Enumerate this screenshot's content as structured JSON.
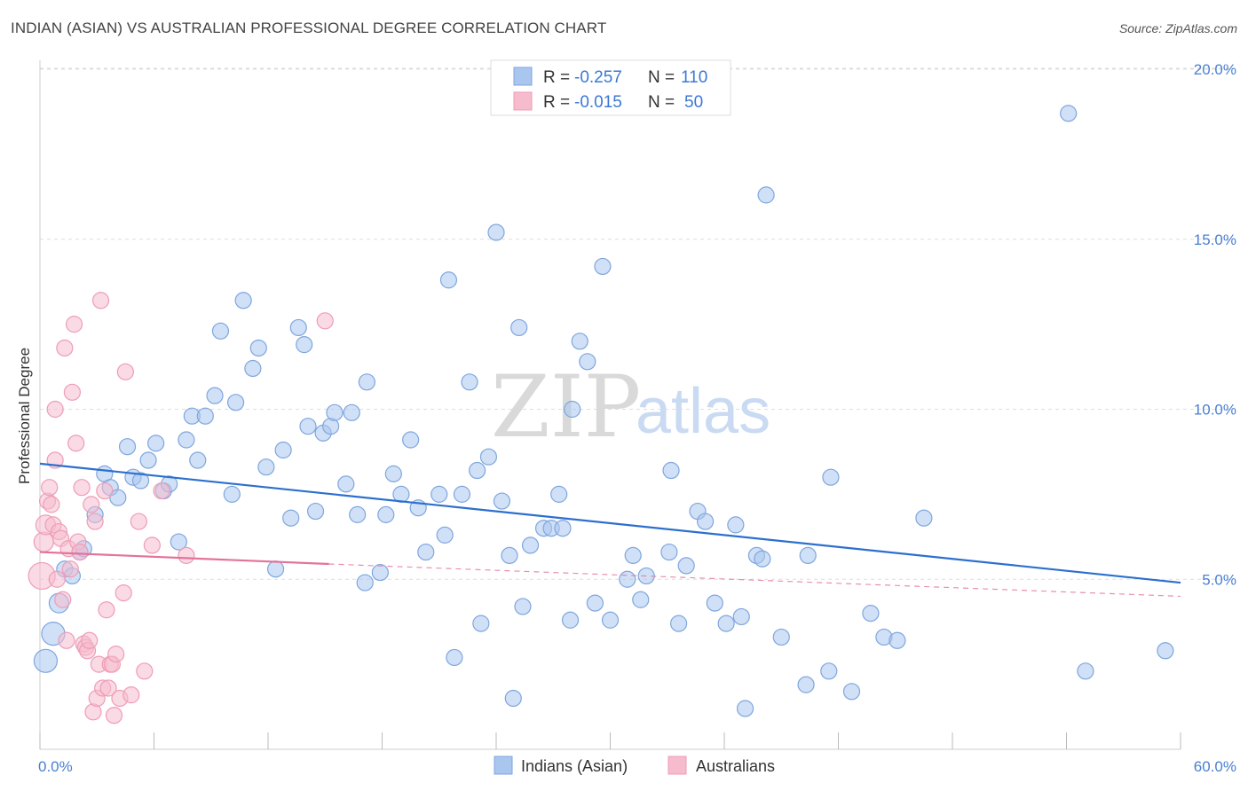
{
  "title": "INDIAN (ASIAN) VS AUSTRALIAN PROFESSIONAL DEGREE CORRELATION CHART",
  "source": "Source: ZipAtlas.com",
  "watermark": {
    "zip": "ZIP",
    "atlas": "atlas"
  },
  "legend": {
    "r_label": "R =",
    "n_label": "N =",
    "rows": [
      {
        "r": "-0.257",
        "n": "110"
      },
      {
        "r": "-0.015",
        "n": "50"
      }
    ]
  },
  "bottom_legend": [
    "Indians (Asian)",
    "Australians"
  ],
  "colors": {
    "blue_fill": "#a9c6ee",
    "blue_stroke": "#7fa6de",
    "blue_line": "#2c6fce",
    "pink_fill": "#f6bccd",
    "pink_stroke": "#ee9db6",
    "pink_line": "#e2739a",
    "tick_text": "#4a7fd1",
    "grid": "#dddddd"
  },
  "chart_data": {
    "type": "scatter",
    "title": "INDIAN (ASIAN) VS AUSTRALIAN PROFESSIONAL DEGREE CORRELATION CHART",
    "xlabel": "",
    "ylabel": "Professional Degree",
    "xlim": [
      0,
      60
    ],
    "ylim": [
      0,
      20.6
    ],
    "x_tick_labels": [
      "0.0%",
      "60.0%"
    ],
    "y_ticks": [
      5,
      10,
      15,
      20
    ],
    "y_tick_labels": [
      "5.0%",
      "10.0%",
      "15.0%",
      "20.0%"
    ],
    "grid": "horizontal dashed",
    "legend_position": "top-center",
    "series": [
      {
        "name": "Indians (Asian)",
        "r": -0.257,
        "n": 110,
        "trend": {
          "x": [
            0,
            60
          ],
          "y": [
            8.4,
            4.9
          ]
        },
        "points": [
          [
            0.3,
            2.6,
            13
          ],
          [
            0.7,
            3.4,
            13
          ],
          [
            1.0,
            4.3,
            11
          ],
          [
            1.3,
            5.3,
            9
          ],
          [
            1.7,
            5.1,
            9
          ],
          [
            2.1,
            5.8,
            9
          ],
          [
            2.3,
            5.9,
            9
          ],
          [
            2.9,
            6.9,
            9
          ],
          [
            3.4,
            8.1,
            9
          ],
          [
            3.7,
            7.7,
            9
          ],
          [
            4.1,
            7.4,
            9
          ],
          [
            4.6,
            8.9,
            9
          ],
          [
            4.9,
            8.0,
            9
          ],
          [
            5.3,
            7.9,
            9
          ],
          [
            5.7,
            8.5,
            9
          ],
          [
            6.1,
            9.0,
            9
          ],
          [
            6.5,
            7.6,
            9
          ],
          [
            6.8,
            7.8,
            9
          ],
          [
            7.3,
            6.1,
            9
          ],
          [
            7.7,
            9.1,
            9
          ],
          [
            8.0,
            9.8,
            9
          ],
          [
            8.3,
            8.5,
            9
          ],
          [
            8.7,
            9.8,
            9
          ],
          [
            9.2,
            10.4,
            9
          ],
          [
            9.5,
            12.3,
            9
          ],
          [
            10.1,
            7.5,
            9
          ],
          [
            10.3,
            10.2,
            9
          ],
          [
            10.7,
            13.2,
            9
          ],
          [
            11.2,
            11.2,
            9
          ],
          [
            11.5,
            11.8,
            9
          ],
          [
            11.9,
            8.3,
            9
          ],
          [
            12.4,
            5.3,
            9
          ],
          [
            12.8,
            8.8,
            9
          ],
          [
            13.2,
            6.8,
            9
          ],
          [
            13.6,
            12.4,
            9
          ],
          [
            13.9,
            11.9,
            9
          ],
          [
            14.1,
            9.5,
            9
          ],
          [
            14.5,
            7.0,
            9
          ],
          [
            14.9,
            9.3,
            9
          ],
          [
            15.3,
            9.5,
            9
          ],
          [
            15.5,
            9.9,
            9
          ],
          [
            16.1,
            7.8,
            9
          ],
          [
            16.4,
            9.9,
            9
          ],
          [
            16.7,
            6.9,
            9
          ],
          [
            17.1,
            4.9,
            9
          ],
          [
            17.2,
            10.8,
            9
          ],
          [
            17.9,
            5.2,
            9
          ],
          [
            18.2,
            6.9,
            9
          ],
          [
            18.6,
            8.1,
            9
          ],
          [
            19.0,
            7.5,
            9
          ],
          [
            19.5,
            9.1,
            9
          ],
          [
            19.9,
            7.1,
            9
          ],
          [
            20.3,
            5.8,
            9
          ],
          [
            21.0,
            7.5,
            9
          ],
          [
            21.3,
            6.3,
            9
          ],
          [
            21.5,
            13.8,
            9
          ],
          [
            21.8,
            2.7,
            9
          ],
          [
            22.2,
            7.5,
            9
          ],
          [
            22.6,
            10.8,
            9
          ],
          [
            23.0,
            8.2,
            9
          ],
          [
            23.2,
            3.7,
            9
          ],
          [
            23.6,
            8.6,
            9
          ],
          [
            24.0,
            15.2,
            9
          ],
          [
            24.3,
            7.3,
            9
          ],
          [
            24.7,
            5.7,
            9
          ],
          [
            24.9,
            1.5,
            9
          ],
          [
            25.2,
            12.4,
            9
          ],
          [
            25.4,
            4.2,
            9
          ],
          [
            25.8,
            6.0,
            9
          ],
          [
            26.5,
            6.5,
            9
          ],
          [
            26.9,
            6.5,
            9
          ],
          [
            27.3,
            7.5,
            9
          ],
          [
            27.5,
            6.5,
            9
          ],
          [
            27.9,
            3.8,
            9
          ],
          [
            28.0,
            10.0,
            9
          ],
          [
            28.4,
            12.0,
            9
          ],
          [
            28.8,
            11.4,
            9
          ],
          [
            29.2,
            4.3,
            9
          ],
          [
            29.6,
            14.2,
            9
          ],
          [
            30.0,
            3.8,
            9
          ],
          [
            30.9,
            5.0,
            9
          ],
          [
            31.2,
            5.7,
            9
          ],
          [
            31.6,
            4.4,
            9
          ],
          [
            31.9,
            5.1,
            9
          ],
          [
            33.1,
            5.8,
            9
          ],
          [
            33.2,
            8.2,
            9
          ],
          [
            33.6,
            3.7,
            9
          ],
          [
            34.0,
            5.4,
            9
          ],
          [
            34.6,
            7.0,
            9
          ],
          [
            35.0,
            6.7,
            9
          ],
          [
            35.5,
            4.3,
            9
          ],
          [
            36.1,
            3.7,
            9
          ],
          [
            36.6,
            6.6,
            9
          ],
          [
            36.9,
            3.9,
            9
          ],
          [
            37.1,
            1.2,
            9
          ],
          [
            37.7,
            5.7,
            9
          ],
          [
            38.0,
            5.6,
            9
          ],
          [
            38.2,
            16.3,
            9
          ],
          [
            39.0,
            3.3,
            9
          ],
          [
            40.3,
            1.9,
            9
          ],
          [
            40.4,
            5.7,
            9
          ],
          [
            41.5,
            2.3,
            9
          ],
          [
            41.6,
            8.0,
            9
          ],
          [
            42.7,
            1.7,
            9
          ],
          [
            43.7,
            4.0,
            9
          ],
          [
            44.4,
            3.3,
            9
          ],
          [
            45.1,
            3.2,
            9
          ],
          [
            46.5,
            6.8,
            9
          ],
          [
            55.0,
            2.3,
            9
          ],
          [
            54.1,
            18.7,
            9
          ],
          [
            59.2,
            2.9,
            9
          ]
        ]
      },
      {
        "name": "Australians",
        "r": -0.015,
        "n": 50,
        "trend_solid": {
          "x": [
            0,
            15.2
          ],
          "y": [
            5.8,
            5.45
          ]
        },
        "trend_dashed": {
          "x": [
            15.2,
            60
          ],
          "y": [
            5.45,
            4.5
          ]
        },
        "points": [
          [
            0.1,
            5.1,
            15
          ],
          [
            0.2,
            6.1,
            11
          ],
          [
            0.3,
            6.6,
            11
          ],
          [
            0.4,
            7.3,
            9
          ],
          [
            0.5,
            7.7,
            9
          ],
          [
            0.6,
            7.2,
            9
          ],
          [
            0.7,
            6.6,
            9
          ],
          [
            0.8,
            8.5,
            9
          ],
          [
            0.8,
            10.0,
            9
          ],
          [
            0.9,
            5.0,
            9
          ],
          [
            1.0,
            6.4,
            9
          ],
          [
            1.1,
            6.2,
            9
          ],
          [
            1.2,
            4.4,
            9
          ],
          [
            1.3,
            11.8,
            9
          ],
          [
            1.4,
            3.2,
            9
          ],
          [
            1.5,
            5.9,
            9
          ],
          [
            1.6,
            5.3,
            9
          ],
          [
            1.7,
            10.5,
            9
          ],
          [
            1.8,
            12.5,
            9
          ],
          [
            1.9,
            9.0,
            9
          ],
          [
            2.0,
            6.1,
            9
          ],
          [
            2.1,
            5.8,
            9
          ],
          [
            2.2,
            7.7,
            9
          ],
          [
            2.3,
            3.1,
            9
          ],
          [
            2.4,
            3.0,
            9
          ],
          [
            2.5,
            2.9,
            9
          ],
          [
            2.6,
            3.2,
            9
          ],
          [
            2.7,
            7.2,
            9
          ],
          [
            2.8,
            1.1,
            9
          ],
          [
            2.9,
            6.7,
            9
          ],
          [
            3.0,
            1.5,
            9
          ],
          [
            3.1,
            2.5,
            9
          ],
          [
            3.2,
            13.2,
            9
          ],
          [
            3.3,
            1.8,
            9
          ],
          [
            3.4,
            7.6,
            9
          ],
          [
            3.5,
            4.1,
            9
          ],
          [
            3.6,
            1.8,
            9
          ],
          [
            3.7,
            2.5,
            9
          ],
          [
            3.8,
            2.5,
            9
          ],
          [
            3.9,
            1.0,
            9
          ],
          [
            4.0,
            2.8,
            9
          ],
          [
            4.2,
            1.5,
            9
          ],
          [
            4.4,
            4.6,
            9
          ],
          [
            4.5,
            11.1,
            9
          ],
          [
            4.8,
            1.6,
            9
          ],
          [
            5.2,
            6.7,
            9
          ],
          [
            5.5,
            2.3,
            9
          ],
          [
            5.9,
            6.0,
            9
          ],
          [
            6.4,
            7.6,
            9
          ],
          [
            7.7,
            5.7,
            9
          ],
          [
            15.0,
            12.6,
            9
          ]
        ]
      }
    ]
  }
}
